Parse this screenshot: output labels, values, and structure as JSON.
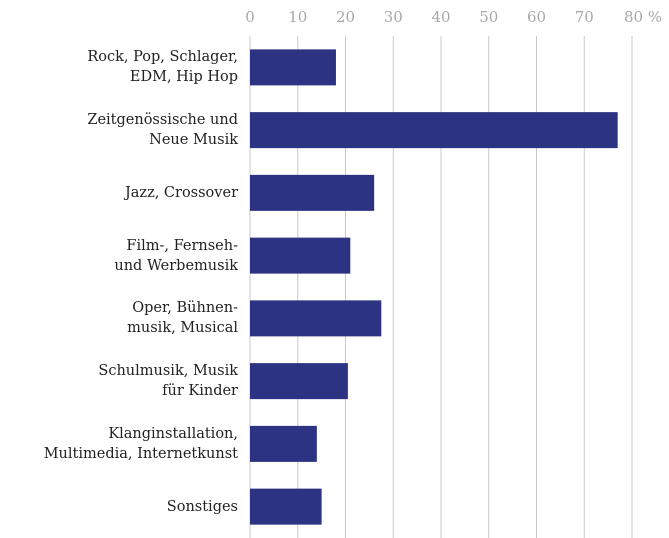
{
  "chart_data": {
    "type": "bar",
    "orientation": "horizontal",
    "categories": [
      "Rock, Pop, Schlager,\nEDM, Hip Hop",
      "Zeitgenössische und\nNeue Musik",
      "Jazz, Crossover",
      "Film-, Fernseh-\nund Werbemusik",
      "Oper, Bühnen-\nmusik, Musical",
      "Schulmusik, Musik\nfür Kinder",
      "Klanginstallation,\nMultimedia, Internetkunst",
      "Sonstiges"
    ],
    "values": [
      18,
      77,
      26,
      21,
      27.5,
      20.5,
      14,
      15
    ],
    "color": "#2b3382",
    "xlim": [
      0,
      80
    ],
    "xticks": [
      0,
      10,
      20,
      30,
      40,
      50,
      60,
      70,
      {
        "value": 80,
        "label": "80 %"
      }
    ],
    "grid": true
  }
}
